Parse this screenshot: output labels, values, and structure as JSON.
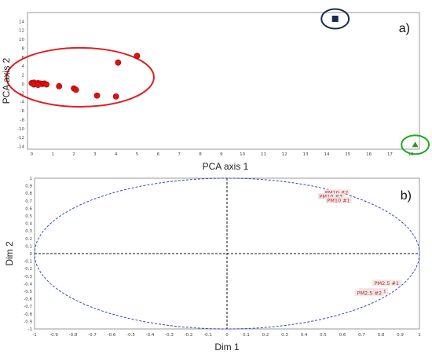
{
  "colors": {
    "points": "#dd1111",
    "outlier_square": "#1a2a55",
    "outlier_triangle": "#3e8a2a",
    "ellipse_red": "#e02020",
    "ellipse_navy": "#1a2a55",
    "ellipse_green": "#22aa22",
    "circle_blue": "#3344cc",
    "crosshair": "#111111",
    "label_red": "#b03030",
    "label_bg": "#f1e4e4"
  },
  "chart_data": [
    {
      "type": "scatter",
      "panel_label": "a)",
      "xlabel": "PCA axis 1",
      "ylabel": "PCA axis 2",
      "xlim": [
        -0.2,
        18.4
      ],
      "ylim": [
        -14.6,
        16
      ],
      "xticks": [
        "0",
        "1",
        "2",
        "3",
        "4",
        "5",
        "6",
        "7",
        "8",
        "9",
        "10",
        "11",
        "12",
        "13",
        "14",
        "15",
        "16",
        "17",
        "18"
      ],
      "yticks": [
        "14",
        "12",
        "10",
        "8",
        "6",
        "4",
        "2",
        "0",
        "-2",
        "-4",
        "-6",
        "-8",
        "-10",
        "-12",
        "-14"
      ],
      "series": [
        {
          "marker": "circle",
          "points": [
            [
              0.0,
              0.2
            ],
            [
              0.1,
              0.3
            ],
            [
              0.2,
              0.1
            ],
            [
              0.3,
              0.2
            ],
            [
              0.4,
              0.1
            ],
            [
              0.5,
              0.0
            ],
            [
              0.6,
              0.1
            ],
            [
              0.7,
              -0.1
            ],
            [
              0.1,
              -0.1
            ],
            [
              0.3,
              -0.2
            ],
            [
              1.3,
              -0.5
            ],
            [
              2.0,
              -1.0
            ],
            [
              2.1,
              -1.3
            ],
            [
              3.1,
              -2.6
            ],
            [
              4.0,
              -2.8
            ],
            [
              4.1,
              4.8
            ],
            [
              5.0,
              6.3
            ]
          ]
        },
        {
          "marker": "square",
          "points": [
            [
              14.4,
              14.6
            ]
          ]
        },
        {
          "marker": "triangle",
          "points": [
            [
              18.2,
              -13.6
            ]
          ]
        }
      ],
      "highlight_ellipses": [
        {
          "color": "ellipse_red",
          "center": [
            2.3,
            1.5
          ],
          "rx": 3.5,
          "ry": 6.6
        },
        {
          "color": "ellipse_navy",
          "center": [
            14.4,
            14.6
          ],
          "rx": 0.65,
          "ry": 2.2
        },
        {
          "color": "ellipse_green",
          "center": [
            18.2,
            -13.6
          ],
          "rx": 0.65,
          "ry": 2.1
        }
      ]
    },
    {
      "type": "scatter",
      "panel_label": "b)",
      "xlabel": "Dim 1",
      "ylabel": "Dim 2",
      "xlim": [
        -1,
        1
      ],
      "ylim": [
        -1,
        1
      ],
      "grid": false,
      "xticks": [
        "-1",
        "-0.9",
        "-0.8",
        "-0.7",
        "-0.6",
        "-0.5",
        "-0.4",
        "-0.3",
        "-0.2",
        "-0.1",
        "0",
        "0.1",
        "0.2",
        "0.3",
        "0.4",
        "0.5",
        "0.6",
        "0.7",
        "0.8",
        "0.9",
        "1"
      ],
      "yticks": [
        "1",
        "0.9",
        "0.8",
        "0.7",
        "0.6",
        "0.5",
        "0.4",
        "0.3",
        "0.2",
        "0.1",
        "0",
        "-0.1",
        "-0.2",
        "-0.3",
        "-0.4",
        "-0.5",
        "-0.6",
        "-0.7",
        "-0.8",
        "-0.9",
        "-1"
      ],
      "points": [
        {
          "label": "PM10 #2",
          "x": 0.57,
          "y": 0.8
        },
        {
          "label": "PM10 #3",
          "x": 0.54,
          "y": 0.75
        },
        {
          "label": "PM10 #1",
          "x": 0.58,
          "y": 0.7
        },
        {
          "label": "PM2.5 #1",
          "x": 0.83,
          "y": -0.4
        },
        {
          "label": "PM2.5 #3",
          "x": 0.76,
          "y": -0.51
        },
        {
          "label": "PM2.5 #2",
          "x": 0.74,
          "y": -0.53
        }
      ]
    }
  ]
}
